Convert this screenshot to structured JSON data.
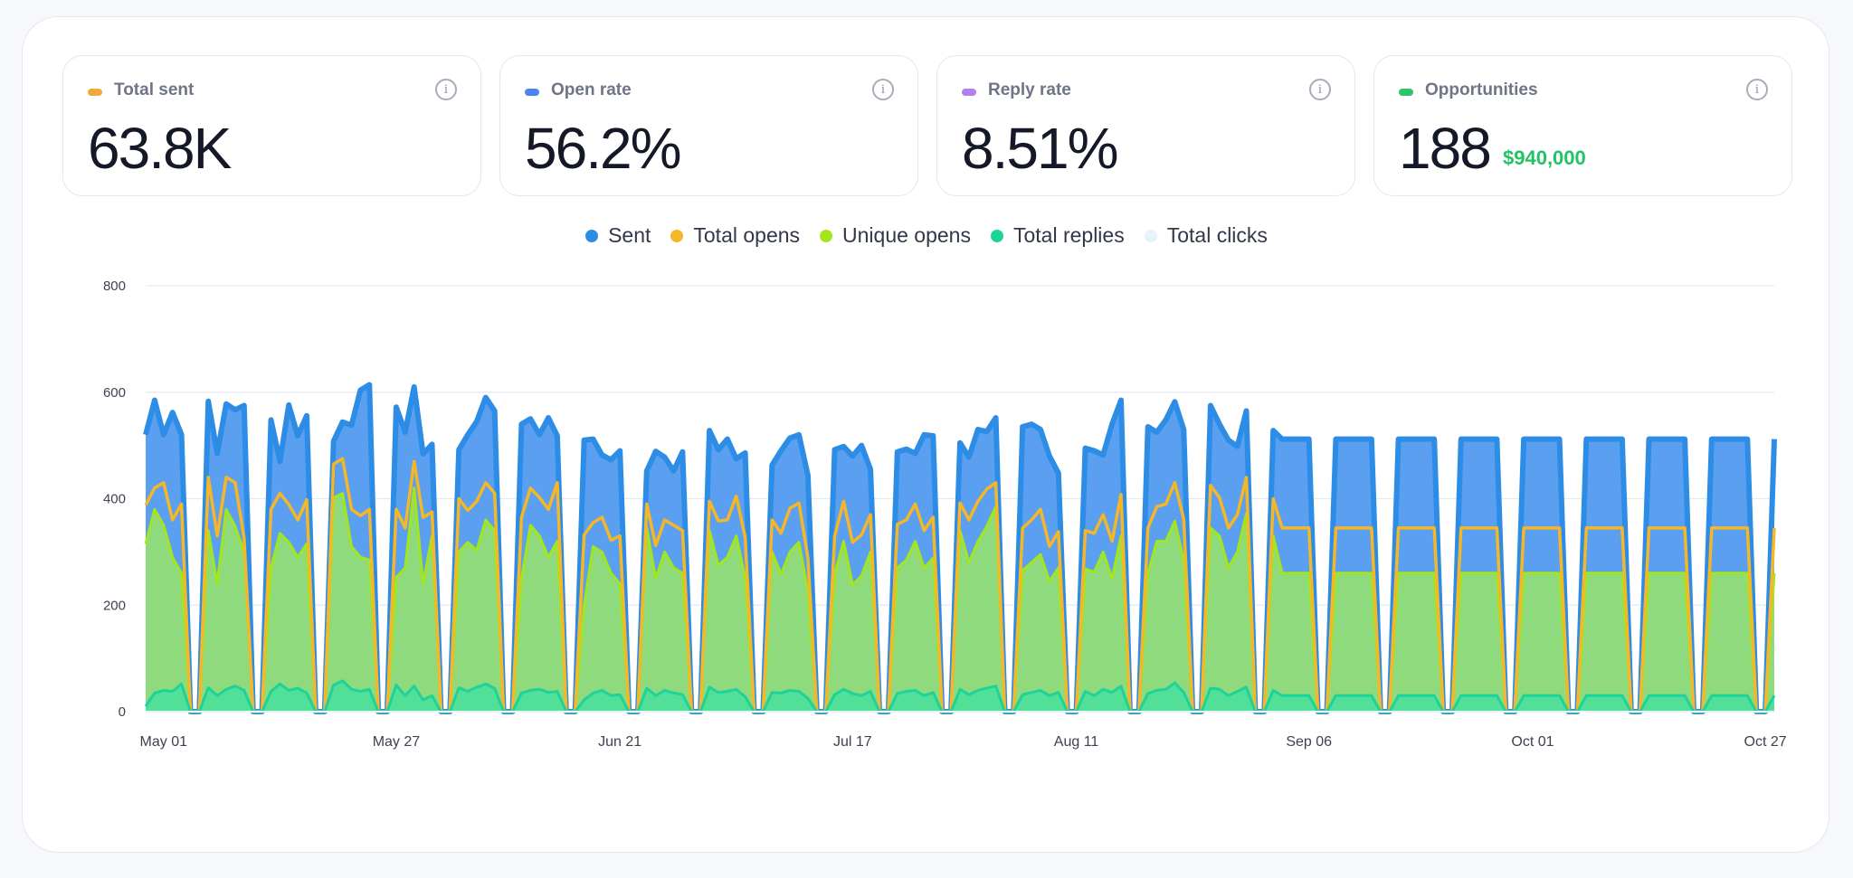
{
  "stats": [
    {
      "label": "Total sent",
      "value": "63.8K",
      "sub": "",
      "color": "#f0a93a"
    },
    {
      "label": "Open rate",
      "value": "56.2%",
      "sub": "",
      "color": "#4b84ea"
    },
    {
      "label": "Reply rate",
      "value": "8.51%",
      "sub": "",
      "color": "#b57ff0"
    },
    {
      "label": "Opportunities",
      "value": "188",
      "sub": "$940,000",
      "color": "#2fc36a"
    }
  ],
  "info_icon_glyph": "i",
  "chart_data": {
    "type": "area",
    "title": "",
    "xlabel": "",
    "ylabel": "",
    "ylim": [
      0,
      800
    ],
    "yticks": [
      0,
      200,
      400,
      600,
      800
    ],
    "grid": true,
    "legend_position": "top-center",
    "x_start": "2024-04-29",
    "x_end": "2024-10-28",
    "xtick_labels": [
      {
        "label": "May 01",
        "date": "2024-05-01"
      },
      {
        "label": "May 27",
        "date": "2024-05-27"
      },
      {
        "label": "Jun 21",
        "date": "2024-06-21"
      },
      {
        "label": "Jul 17",
        "date": "2024-07-17"
      },
      {
        "label": "Aug 11",
        "date": "2024-08-11"
      },
      {
        "label": "Sep 06",
        "date": "2024-09-06"
      },
      {
        "label": "Oct 01",
        "date": "2024-10-01"
      },
      {
        "label": "Oct 27",
        "date": "2024-10-27"
      }
    ],
    "series": [
      {
        "name": "Sent",
        "color": "#2d8de6",
        "fill": "#5a9ff0"
      },
      {
        "name": "Total opens",
        "color": "#f5b728",
        "fill": "none"
      },
      {
        "name": "Unique opens",
        "color": "#a3e61e",
        "fill": "#8fda7c"
      },
      {
        "name": "Total replies",
        "color": "#1ed39a",
        "fill": "#52df98"
      },
      {
        "name": "Total clicks",
        "color": "#e5f3fb",
        "fill": "none"
      }
    ],
    "weekday_values": {
      "sent": [
        520,
        585,
        520,
        562,
        520,
        583,
        485,
        578,
        567,
        575,
        548,
        470,
        576,
        518,
        556,
        508,
        544,
        538,
        604,
        614,
        572,
        525,
        610,
        484,
        502,
        492,
        520,
        545,
        590,
        565,
        540,
        550,
        520,
        552,
        518,
        510,
        512,
        482,
        473,
        490,
        452,
        489,
        478,
        452,
        488,
        528,
        492,
        512,
        475,
        486,
        463,
        490,
        514,
        520,
        444,
        492,
        498,
        480,
        500,
        455,
        488,
        493,
        485,
        520,
        518,
        505,
        478,
        530,
        526,
        552,
        535,
        540,
        530,
        480,
        448,
        495,
        490,
        482,
        540,
        585,
        535,
        525,
        548,
        582,
        530,
        575,
        540,
        510,
        498,
        565,
        528,
        512
      ],
      "total_opens": [
        388,
        420,
        430,
        360,
        390,
        440,
        330,
        440,
        430,
        326,
        380,
        410,
        389,
        360,
        398,
        465,
        475,
        380,
        368,
        380,
        380,
        345,
        470,
        365,
        375,
        400,
        378,
        395,
        430,
        410,
        365,
        420,
        402,
        380,
        430,
        332,
        355,
        365,
        322,
        330,
        390,
        312,
        360,
        350,
        340,
        395,
        358,
        360,
        405,
        328,
        360,
        335,
        382,
        392,
        290,
        330,
        395,
        318,
        332,
        370,
        352,
        360,
        390,
        340,
        365,
        392,
        360,
        395,
        418,
        430,
        345,
        360,
        380,
        310,
        338,
        340,
        335,
        370,
        320,
        408,
        345,
        385,
        390,
        430,
        362,
        425,
        402,
        345,
        370,
        440,
        400,
        345
      ],
      "unique_opens": [
        315,
        380,
        350,
        290,
        260,
        340,
        240,
        380,
        348,
        300,
        270,
        335,
        318,
        290,
        315,
        402,
        410,
        310,
        290,
        285,
        252,
        270,
        420,
        240,
        330,
        300,
        318,
        303,
        360,
        340,
        250,
        350,
        330,
        290,
        320,
        200,
        310,
        300,
        260,
        240,
        345,
        250,
        300,
        270,
        260,
        340,
        275,
        290,
        330,
        250,
        300,
        258,
        300,
        318,
        225,
        258,
        320,
        238,
        255,
        300,
        270,
        285,
        320,
        270,
        288,
        340,
        280,
        320,
        348,
        385,
        265,
        280,
        295,
        245,
        270,
        268,
        262,
        300,
        250,
        330,
        260,
        320,
        320,
        358,
        285,
        345,
        330,
        270,
        300,
        372,
        330,
        260
      ],
      "total_replies": [
        10,
        35,
        40,
        38,
        52,
        45,
        30,
        42,
        48,
        40,
        38,
        52,
        40,
        44,
        35,
        50,
        58,
        42,
        38,
        42,
        50,
        30,
        48,
        22,
        30,
        45,
        38,
        46,
        52,
        44,
        35,
        40,
        42,
        36,
        38,
        22,
        35,
        40,
        30,
        32,
        44,
        30,
        40,
        35,
        32,
        46,
        36,
        38,
        42,
        28,
        36,
        35,
        40,
        38,
        25,
        32,
        42,
        34,
        30,
        38,
        34,
        38,
        40,
        30,
        36,
        42,
        32,
        40,
        44,
        48,
        32,
        36,
        40,
        30,
        36,
        38,
        30,
        42,
        36,
        48,
        34,
        40,
        42,
        54,
        36,
        44,
        42,
        30,
        38,
        46,
        40,
        30
      ]
    }
  }
}
